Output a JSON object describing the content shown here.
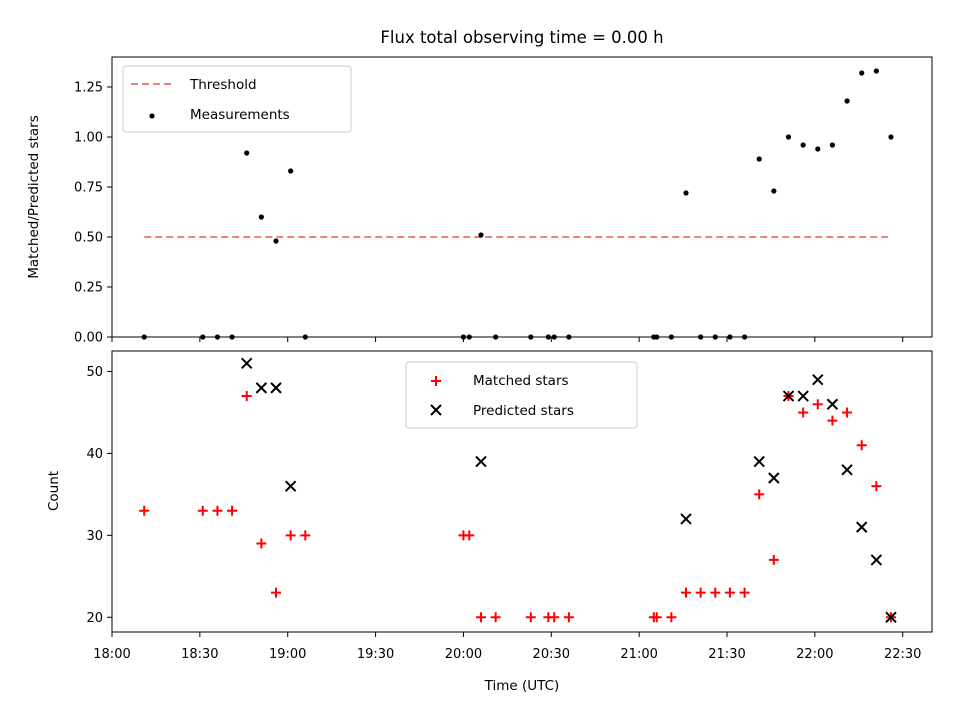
{
  "chart_data": [
    {
      "type": "scatter",
      "title": "Flux total observing time = 0.00 h",
      "xlabel": "",
      "ylabel": "Matched/Predicted stars",
      "xlim": [
        "18:00",
        "22:40"
      ],
      "ylim": [
        0,
        1.4
      ],
      "yticks": [
        "0.00",
        "0.25",
        "0.50",
        "0.75",
        "1.00",
        "1.25"
      ],
      "legend_position": "top-left",
      "threshold": {
        "name": "Threshold",
        "value": 0.5,
        "x_range": [
          "18:11",
          "22:26"
        ],
        "color": "#f08080",
        "style": "dashed"
      },
      "series": [
        {
          "name": "Measurements",
          "color": "#000000",
          "marker": "dot",
          "points": [
            [
              "18:11",
              0.0
            ],
            [
              "18:31",
              0.0
            ],
            [
              "18:36",
              0.0
            ],
            [
              "18:41",
              0.0
            ],
            [
              "18:46",
              0.92
            ],
            [
              "18:51",
              0.6
            ],
            [
              "18:56",
              0.48
            ],
            [
              "19:01",
              0.83
            ],
            [
              "19:06",
              0.0
            ],
            [
              "20:00",
              0.0
            ],
            [
              "20:02",
              0.0
            ],
            [
              "20:06",
              0.51
            ],
            [
              "20:11",
              0.0
            ],
            [
              "20:23",
              0.0
            ],
            [
              "20:29",
              0.0
            ],
            [
              "20:31",
              0.0
            ],
            [
              "20:36",
              0.0
            ],
            [
              "21:05",
              0.0
            ],
            [
              "21:06",
              0.0
            ],
            [
              "21:11",
              0.0
            ],
            [
              "21:16",
              0.72
            ],
            [
              "21:21",
              0.0
            ],
            [
              "21:26",
              0.0
            ],
            [
              "21:31",
              0.0
            ],
            [
              "21:36",
              0.0
            ],
            [
              "21:41",
              0.89
            ],
            [
              "21:46",
              0.73
            ],
            [
              "21:51",
              1.0
            ],
            [
              "21:56",
              0.96
            ],
            [
              "22:01",
              0.94
            ],
            [
              "22:06",
              0.96
            ],
            [
              "22:11",
              1.18
            ],
            [
              "22:16",
              1.32
            ],
            [
              "22:21",
              1.33
            ],
            [
              "22:26",
              1.0
            ]
          ]
        }
      ]
    },
    {
      "type": "scatter",
      "title": "",
      "xlabel": "Time (UTC)",
      "ylabel": "Count",
      "xlim": [
        "18:00",
        "22:40"
      ],
      "ylim": [
        18.2,
        52.5
      ],
      "xticks": [
        "18:00",
        "18:30",
        "19:00",
        "19:30",
        "20:00",
        "20:30",
        "21:00",
        "21:30",
        "22:00",
        "22:30"
      ],
      "yticks": [
        "20",
        "30",
        "40",
        "50"
      ],
      "legend_position": "top-center",
      "series": [
        {
          "name": "Matched stars",
          "color": "#ff0000",
          "marker": "plus",
          "points": [
            [
              "18:11",
              33
            ],
            [
              "18:31",
              33
            ],
            [
              "18:36",
              33
            ],
            [
              "18:41",
              33
            ],
            [
              "18:46",
              47
            ],
            [
              "18:51",
              29
            ],
            [
              "18:56",
              23
            ],
            [
              "19:01",
              30
            ],
            [
              "19:06",
              30
            ],
            [
              "20:00",
              30
            ],
            [
              "20:02",
              30
            ],
            [
              "20:06",
              20
            ],
            [
              "20:11",
              20
            ],
            [
              "20:23",
              20
            ],
            [
              "20:29",
              20
            ],
            [
              "20:31",
              20
            ],
            [
              "20:36",
              20
            ],
            [
              "21:05",
              20
            ],
            [
              "21:06",
              20
            ],
            [
              "21:11",
              20
            ],
            [
              "21:16",
              23
            ],
            [
              "21:21",
              23
            ],
            [
              "21:26",
              23
            ],
            [
              "21:31",
              23
            ],
            [
              "21:36",
              23
            ],
            [
              "21:41",
              35
            ],
            [
              "21:46",
              27
            ],
            [
              "21:51",
              47
            ],
            [
              "21:56",
              45
            ],
            [
              "22:01",
              46
            ],
            [
              "22:06",
              44
            ],
            [
              "22:11",
              45
            ],
            [
              "22:16",
              41
            ],
            [
              "22:21",
              36
            ],
            [
              "22:26",
              20
            ]
          ]
        },
        {
          "name": "Predicted stars",
          "color": "#000000",
          "marker": "x",
          "points": [
            [
              "18:46",
              51
            ],
            [
              "18:51",
              48
            ],
            [
              "18:56",
              48
            ],
            [
              "19:01",
              36
            ],
            [
              "20:06",
              39
            ],
            [
              "21:16",
              32
            ],
            [
              "21:41",
              39
            ],
            [
              "21:46",
              37
            ],
            [
              "21:51",
              47
            ],
            [
              "21:56",
              47
            ],
            [
              "22:01",
              49
            ],
            [
              "22:06",
              46
            ],
            [
              "22:11",
              38
            ],
            [
              "22:16",
              31
            ],
            [
              "22:21",
              27
            ],
            [
              "22:26",
              20
            ]
          ]
        }
      ]
    }
  ]
}
